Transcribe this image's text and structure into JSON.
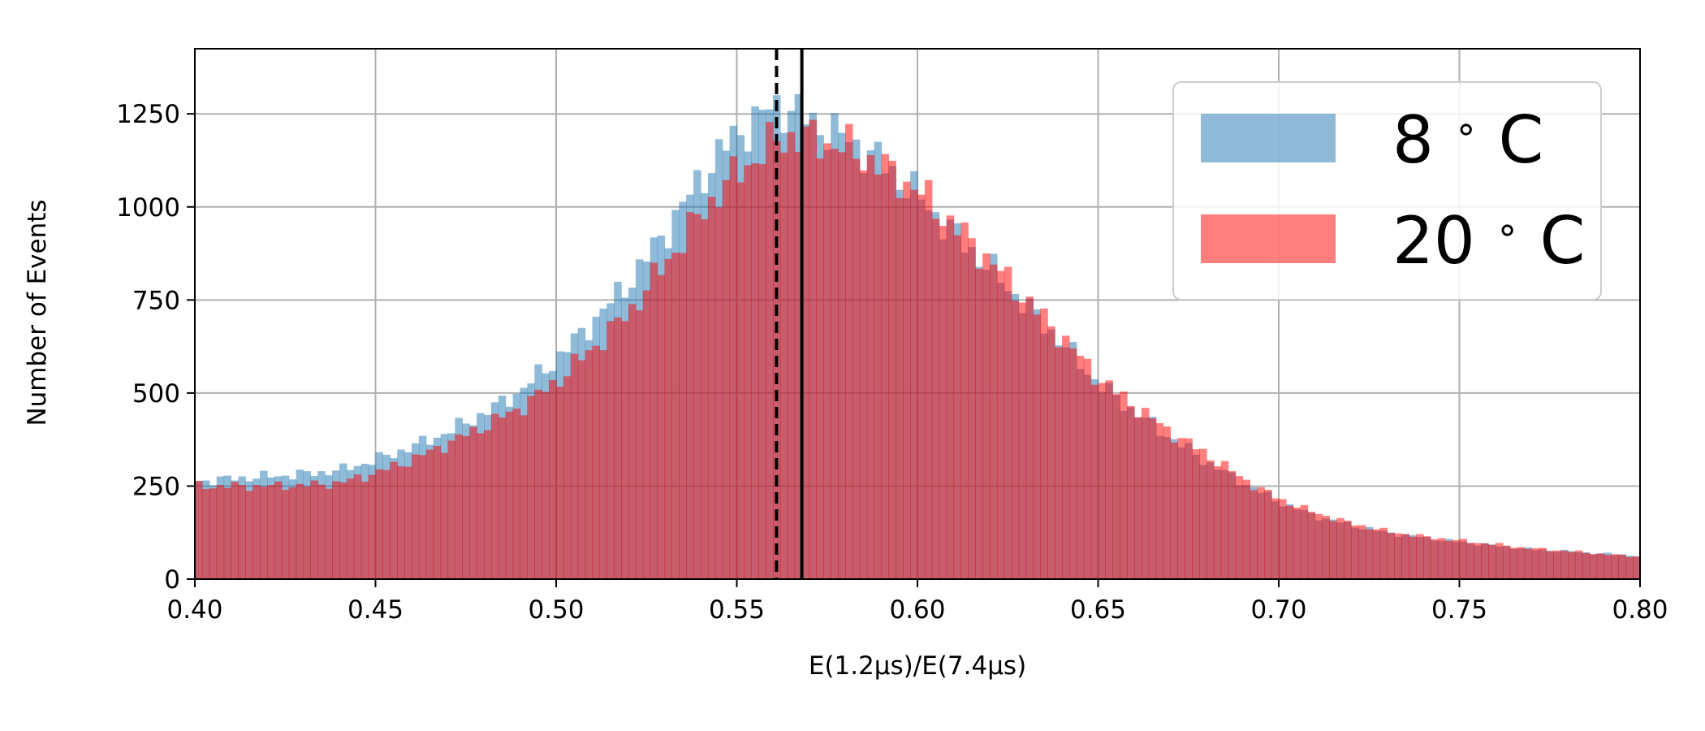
{
  "chart_data": {
    "type": "histogram",
    "xlabel": "E(1.2μs)/E(7.4μs)",
    "ylabel": "Number of Events",
    "xlim": [
      0.4,
      0.8
    ],
    "ylim": [
      0,
      1425
    ],
    "xticks": [
      "0.40",
      "0.45",
      "0.50",
      "0.55",
      "0.60",
      "0.65",
      "0.70",
      "0.75",
      "0.80"
    ],
    "yticks": [
      "0",
      "250",
      "500",
      "750",
      "1000",
      "1250"
    ],
    "grid": true,
    "legend_position": "upper right",
    "bin_width": 0.002,
    "series": [
      {
        "name": "8$^\\circ$C",
        "label": "8 °C",
        "color": "#1f77b4",
        "alpha": 0.5,
        "anchors": [
          [
            0.4,
            262
          ],
          [
            0.41,
            270
          ],
          [
            0.42,
            276
          ],
          [
            0.43,
            282
          ],
          [
            0.44,
            292
          ],
          [
            0.45,
            320
          ],
          [
            0.46,
            355
          ],
          [
            0.47,
            395
          ],
          [
            0.48,
            445
          ],
          [
            0.49,
            505
          ],
          [
            0.5,
            590
          ],
          [
            0.51,
            690
          ],
          [
            0.52,
            795
          ],
          [
            0.53,
            930
          ],
          [
            0.54,
            1075
          ],
          [
            0.545,
            1140
          ],
          [
            0.55,
            1195
          ],
          [
            0.555,
            1230
          ],
          [
            0.56,
            1270
          ],
          [
            0.565,
            1265
          ],
          [
            0.57,
            1230
          ],
          [
            0.58,
            1185
          ],
          [
            0.59,
            1120
          ],
          [
            0.6,
            1030
          ],
          [
            0.61,
            930
          ],
          [
            0.62,
            835
          ],
          [
            0.63,
            735
          ],
          [
            0.64,
            635
          ],
          [
            0.65,
            525
          ],
          [
            0.66,
            450
          ],
          [
            0.67,
            380
          ],
          [
            0.68,
            315
          ],
          [
            0.69,
            260
          ],
          [
            0.7,
            208
          ],
          [
            0.71,
            170
          ],
          [
            0.72,
            145
          ],
          [
            0.73,
            125
          ],
          [
            0.74,
            112
          ],
          [
            0.75,
            100
          ],
          [
            0.76,
            90
          ],
          [
            0.77,
            80
          ],
          [
            0.78,
            75
          ],
          [
            0.79,
            68
          ],
          [
            0.8,
            62
          ]
        ]
      },
      {
        "name": "20$^\\circ$C",
        "label": "20 °C",
        "color": "#ff0000",
        "alpha": 0.5,
        "anchors": [
          [
            0.4,
            250
          ],
          [
            0.41,
            250
          ],
          [
            0.42,
            250
          ],
          [
            0.43,
            252
          ],
          [
            0.44,
            258
          ],
          [
            0.45,
            285
          ],
          [
            0.46,
            320
          ],
          [
            0.47,
            365
          ],
          [
            0.48,
            410
          ],
          [
            0.49,
            460
          ],
          [
            0.5,
            530
          ],
          [
            0.51,
            620
          ],
          [
            0.52,
            715
          ],
          [
            0.53,
            845
          ],
          [
            0.54,
            980
          ],
          [
            0.545,
            1040
          ],
          [
            0.55,
            1090
          ],
          [
            0.555,
            1130
          ],
          [
            0.56,
            1170
          ],
          [
            0.565,
            1190
          ],
          [
            0.57,
            1185
          ],
          [
            0.58,
            1160
          ],
          [
            0.59,
            1110
          ],
          [
            0.6,
            1045
          ],
          [
            0.61,
            950
          ],
          [
            0.62,
            855
          ],
          [
            0.63,
            750
          ],
          [
            0.64,
            650
          ],
          [
            0.65,
            540
          ],
          [
            0.66,
            465
          ],
          [
            0.67,
            395
          ],
          [
            0.68,
            335
          ],
          [
            0.69,
            270
          ],
          [
            0.7,
            215
          ],
          [
            0.71,
            178
          ],
          [
            0.72,
            150
          ],
          [
            0.73,
            128
          ],
          [
            0.74,
            114
          ],
          [
            0.75,
            103
          ],
          [
            0.76,
            93
          ],
          [
            0.77,
            82
          ],
          [
            0.78,
            75
          ],
          [
            0.79,
            67
          ],
          [
            0.8,
            60
          ]
        ]
      }
    ],
    "vlines": [
      {
        "x": 0.561,
        "style": "dashed",
        "color": "#000000"
      },
      {
        "x": 0.568,
        "style": "solid",
        "color": "#000000"
      }
    ],
    "legend": [
      {
        "label": "8°C",
        "num": "8",
        "unit": "C",
        "color": "#1f77b4"
      },
      {
        "label": "20°C",
        "num": "20",
        "unit": "C",
        "color": "#ff0000"
      }
    ]
  }
}
